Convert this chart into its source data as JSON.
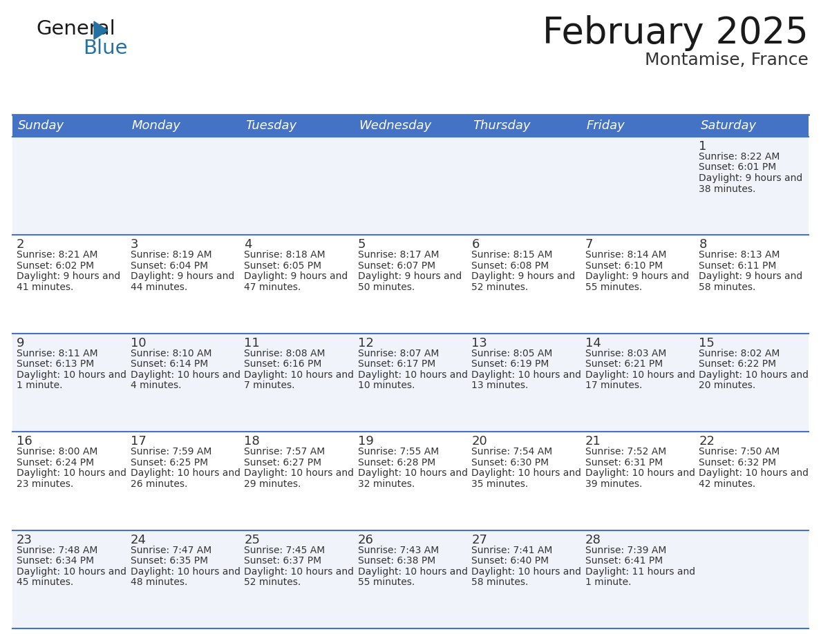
{
  "title": "February 2025",
  "subtitle": "Montamise, France",
  "header_bg": "#4472C4",
  "header_text_color": "#FFFFFF",
  "cell_bg_odd": "#F0F4FA",
  "cell_bg_even": "#FFFFFF",
  "border_color": "#4472C4",
  "text_color": "#333333",
  "day_names": [
    "Sunday",
    "Monday",
    "Tuesday",
    "Wednesday",
    "Thursday",
    "Friday",
    "Saturday"
  ],
  "days": [
    {
      "day": 1,
      "col": 6,
      "row": 0,
      "sunrise": "8:22 AM",
      "sunset": "6:01 PM",
      "daylight": "9 hours and 38 minutes."
    },
    {
      "day": 2,
      "col": 0,
      "row": 1,
      "sunrise": "8:21 AM",
      "sunset": "6:02 PM",
      "daylight": "9 hours and 41 minutes."
    },
    {
      "day": 3,
      "col": 1,
      "row": 1,
      "sunrise": "8:19 AM",
      "sunset": "6:04 PM",
      "daylight": "9 hours and 44 minutes."
    },
    {
      "day": 4,
      "col": 2,
      "row": 1,
      "sunrise": "8:18 AM",
      "sunset": "6:05 PM",
      "daylight": "9 hours and 47 minutes."
    },
    {
      "day": 5,
      "col": 3,
      "row": 1,
      "sunrise": "8:17 AM",
      "sunset": "6:07 PM",
      "daylight": "9 hours and 50 minutes."
    },
    {
      "day": 6,
      "col": 4,
      "row": 1,
      "sunrise": "8:15 AM",
      "sunset": "6:08 PM",
      "daylight": "9 hours and 52 minutes."
    },
    {
      "day": 7,
      "col": 5,
      "row": 1,
      "sunrise": "8:14 AM",
      "sunset": "6:10 PM",
      "daylight": "9 hours and 55 minutes."
    },
    {
      "day": 8,
      "col": 6,
      "row": 1,
      "sunrise": "8:13 AM",
      "sunset": "6:11 PM",
      "daylight": "9 hours and 58 minutes."
    },
    {
      "day": 9,
      "col": 0,
      "row": 2,
      "sunrise": "8:11 AM",
      "sunset": "6:13 PM",
      "daylight": "10 hours and 1 minute."
    },
    {
      "day": 10,
      "col": 1,
      "row": 2,
      "sunrise": "8:10 AM",
      "sunset": "6:14 PM",
      "daylight": "10 hours and 4 minutes."
    },
    {
      "day": 11,
      "col": 2,
      "row": 2,
      "sunrise": "8:08 AM",
      "sunset": "6:16 PM",
      "daylight": "10 hours and 7 minutes."
    },
    {
      "day": 12,
      "col": 3,
      "row": 2,
      "sunrise": "8:07 AM",
      "sunset": "6:17 PM",
      "daylight": "10 hours and 10 minutes."
    },
    {
      "day": 13,
      "col": 4,
      "row": 2,
      "sunrise": "8:05 AM",
      "sunset": "6:19 PM",
      "daylight": "10 hours and 13 minutes."
    },
    {
      "day": 14,
      "col": 5,
      "row": 2,
      "sunrise": "8:03 AM",
      "sunset": "6:21 PM",
      "daylight": "10 hours and 17 minutes."
    },
    {
      "day": 15,
      "col": 6,
      "row": 2,
      "sunrise": "8:02 AM",
      "sunset": "6:22 PM",
      "daylight": "10 hours and 20 minutes."
    },
    {
      "day": 16,
      "col": 0,
      "row": 3,
      "sunrise": "8:00 AM",
      "sunset": "6:24 PM",
      "daylight": "10 hours and 23 minutes."
    },
    {
      "day": 17,
      "col": 1,
      "row": 3,
      "sunrise": "7:59 AM",
      "sunset": "6:25 PM",
      "daylight": "10 hours and 26 minutes."
    },
    {
      "day": 18,
      "col": 2,
      "row": 3,
      "sunrise": "7:57 AM",
      "sunset": "6:27 PM",
      "daylight": "10 hours and 29 minutes."
    },
    {
      "day": 19,
      "col": 3,
      "row": 3,
      "sunrise": "7:55 AM",
      "sunset": "6:28 PM",
      "daylight": "10 hours and 32 minutes."
    },
    {
      "day": 20,
      "col": 4,
      "row": 3,
      "sunrise": "7:54 AM",
      "sunset": "6:30 PM",
      "daylight": "10 hours and 35 minutes."
    },
    {
      "day": 21,
      "col": 5,
      "row": 3,
      "sunrise": "7:52 AM",
      "sunset": "6:31 PM",
      "daylight": "10 hours and 39 minutes."
    },
    {
      "day": 22,
      "col": 6,
      "row": 3,
      "sunrise": "7:50 AM",
      "sunset": "6:32 PM",
      "daylight": "10 hours and 42 minutes."
    },
    {
      "day": 23,
      "col": 0,
      "row": 4,
      "sunrise": "7:48 AM",
      "sunset": "6:34 PM",
      "daylight": "10 hours and 45 minutes."
    },
    {
      "day": 24,
      "col": 1,
      "row": 4,
      "sunrise": "7:47 AM",
      "sunset": "6:35 PM",
      "daylight": "10 hours and 48 minutes."
    },
    {
      "day": 25,
      "col": 2,
      "row": 4,
      "sunrise": "7:45 AM",
      "sunset": "6:37 PM",
      "daylight": "10 hours and 52 minutes."
    },
    {
      "day": 26,
      "col": 3,
      "row": 4,
      "sunrise": "7:43 AM",
      "sunset": "6:38 PM",
      "daylight": "10 hours and 55 minutes."
    },
    {
      "day": 27,
      "col": 4,
      "row": 4,
      "sunrise": "7:41 AM",
      "sunset": "6:40 PM",
      "daylight": "10 hours and 58 minutes."
    },
    {
      "day": 28,
      "col": 5,
      "row": 4,
      "sunrise": "7:39 AM",
      "sunset": "6:41 PM",
      "daylight": "11 hours and 1 minute."
    }
  ],
  "logo_color_general": "#1a1a1a",
  "logo_color_blue": "#2471A3",
  "logo_triangle_color": "#2471A3",
  "title_fontsize": 38,
  "subtitle_fontsize": 18,
  "header_fontsize": 13,
  "day_num_fontsize": 13,
  "cell_text_fontsize": 10
}
